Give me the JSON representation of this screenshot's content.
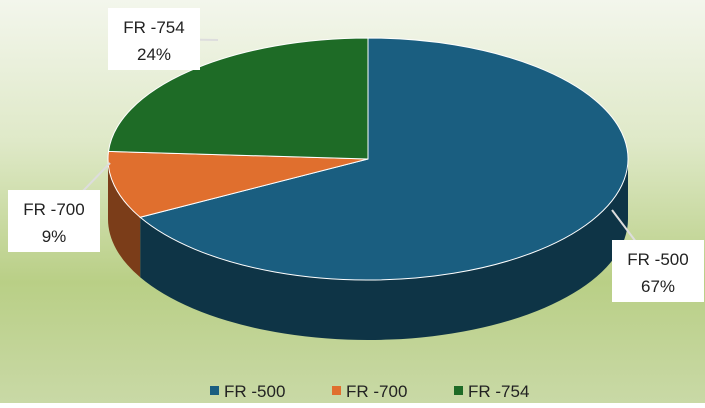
{
  "chart_data": {
    "type": "pie3d",
    "categories": [
      "FR -500",
      "FR -700",
      "FR -754"
    ],
    "values": [
      67,
      9,
      24
    ],
    "value_labels": [
      "67%",
      "9%",
      "24%"
    ],
    "colors": [
      "#1a5e80",
      "#e06f2e",
      "#1e6b26"
    ],
    "legend": "bottom"
  }
}
